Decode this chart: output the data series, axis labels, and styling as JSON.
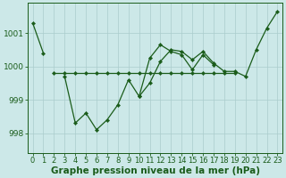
{
  "background_color": "#cce8e8",
  "plot_bg_color": "#cce8e8",
  "grid_color": "#aacccc",
  "line_color": "#1a5c1a",
  "xlabel": "Graphe pression niveau de la mer (hPa)",
  "xlabel_fontsize": 7.5,
  "yticks": [
    998,
    999,
    1000,
    1001
  ],
  "ylim": [
    997.4,
    1001.9
  ],
  "xlim": [
    -0.5,
    23.5
  ],
  "xticks": [
    0,
    1,
    2,
    3,
    4,
    5,
    6,
    7,
    8,
    9,
    10,
    11,
    12,
    13,
    14,
    15,
    16,
    17,
    18,
    19,
    20,
    21,
    22,
    23
  ],
  "series_jagged": [
    1001.3,
    1000.4,
    null,
    999.7,
    998.3,
    998.6,
    998.1,
    998.4,
    998.85,
    999.6,
    999.1,
    1000.25,
    1000.65,
    1000.45,
    1000.35,
    999.9,
    1000.35,
    1000.05,
    null,
    null,
    null,
    null,
    null,
    null
  ],
  "series_flat": [
    null,
    null,
    999.8,
    999.8,
    999.8,
    999.8,
    999.8,
    999.8,
    999.8,
    999.8,
    999.8,
    999.8,
    999.8,
    999.8,
    999.8,
    999.8,
    999.8,
    999.8,
    999.8,
    999.8,
    null,
    null,
    null,
    null
  ],
  "series_rise": [
    null,
    null,
    null,
    null,
    null,
    null,
    null,
    null,
    null,
    null,
    999.1,
    999.5,
    1000.15,
    1000.5,
    1000.45,
    1000.2,
    1000.45,
    1000.1,
    999.85,
    999.85,
    999.7,
    1000.5,
    1001.15,
    1001.65
  ]
}
